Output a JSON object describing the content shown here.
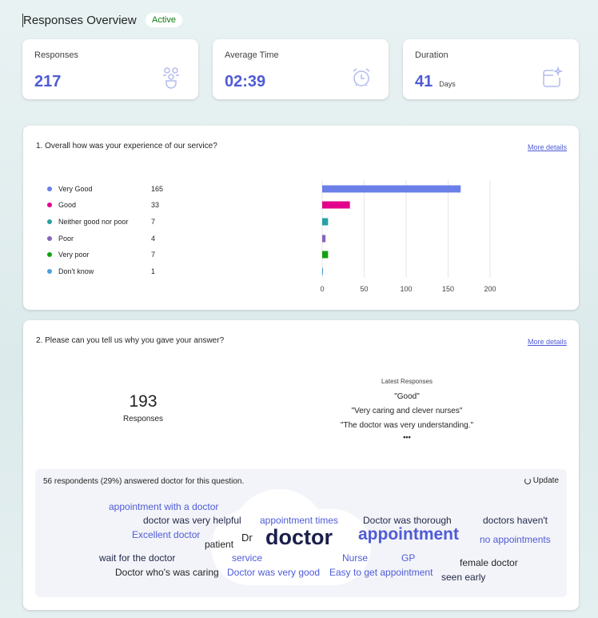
{
  "header": {
    "title": "Responses Overview",
    "status": "Active"
  },
  "stats": [
    {
      "label": "Responses",
      "value": "217",
      "unit": "",
      "icon": "people-icon"
    },
    {
      "label": "Average Time",
      "value": "02:39",
      "unit": "",
      "icon": "alarm-clock-icon"
    },
    {
      "label": "Duration",
      "value": "41",
      "unit": "Days",
      "icon": "calendar-sparkle-icon"
    }
  ],
  "q1": {
    "question": "1. Overall how was your experience of our service?",
    "more": "More details",
    "chart_data": {
      "type": "bar",
      "orientation": "horizontal",
      "categories": [
        "Very Good",
        "Good",
        "Neither good nor poor",
        "Poor",
        "Very poor",
        "Don't know"
      ],
      "values": [
        165,
        33,
        7,
        4,
        7,
        1
      ],
      "colors": [
        "#6b7fe8",
        "#e3008c",
        "#2aa0a4",
        "#8764b8",
        "#13a10e",
        "#4f9fdc"
      ],
      "xlim": [
        0,
        200
      ],
      "xticks": [
        "0",
        "50",
        "100",
        "150",
        "200"
      ],
      "grid": true,
      "legend": "left"
    }
  },
  "q2": {
    "question": "2. Please can you tell us why you gave your answer?",
    "more": "More details",
    "count": "193",
    "count_label": "Responses",
    "latest_title": "Latest Responses",
    "latest": [
      "\"Good\"",
      "\"Very caring and clever nurses\"",
      "\"The doctor was very understanding.\""
    ],
    "ellipsis": "•••",
    "summary": "56 respondents (29%) answered doctor for this question.",
    "update": "Update",
    "words": [
      "appointment with a doctor",
      "doctor was very helpful",
      "appointment times",
      "Doctor was thorough",
      "doctors haven't",
      "Excellent doctor",
      "patient",
      "Dr",
      "doctor",
      "appointment",
      "no appointments",
      "wait for the doctor",
      "service",
      "Nurse",
      "GP",
      "female doctor",
      "Doctor who's was caring",
      "Doctor was very good",
      "Easy to get appointment",
      "seen early"
    ]
  }
}
